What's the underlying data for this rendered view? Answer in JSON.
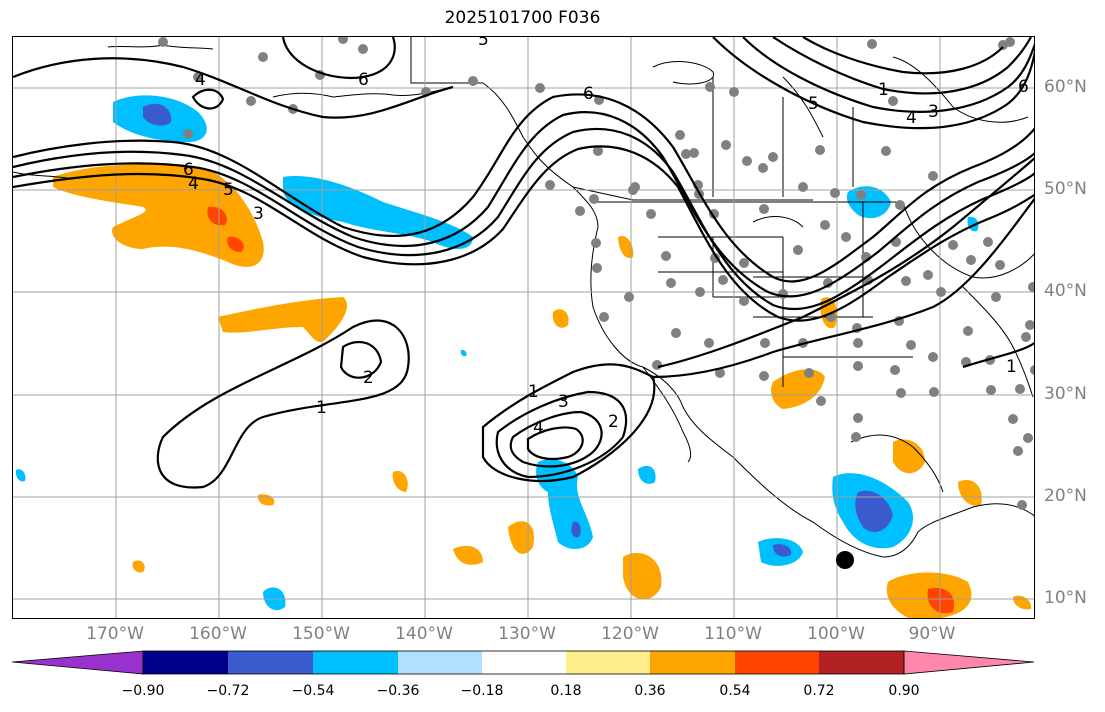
{
  "title": "2025101700 F036",
  "map": {
    "lon_labels": [
      "170°W",
      "160°W",
      "150°W",
      "140°W",
      "130°W",
      "120°W",
      "110°W",
      "100°W",
      "90°W"
    ],
    "lat_labels": [
      "60°N",
      "50°N",
      "40°N",
      "30°N",
      "20°N",
      "10°N"
    ],
    "contour_labels": [
      "1",
      "2",
      "3",
      "4",
      "5",
      "6"
    ],
    "grid": true,
    "marker": "black-dot"
  },
  "colorbar": {
    "ticks": [
      "−0.90",
      "−0.72",
      "−0.54",
      "−0.36",
      "−0.18",
      "0.18",
      "0.36",
      "0.54",
      "0.72",
      "0.90"
    ],
    "colors": [
      "#9932CC",
      "#00008B",
      "#3A5BCC",
      "#00BFFF",
      "#B0E0FF",
      "#FFFFFF",
      "#FFEC8B",
      "#FFA500",
      "#FF4500",
      "#B22222",
      "#FF88AA"
    ]
  }
}
